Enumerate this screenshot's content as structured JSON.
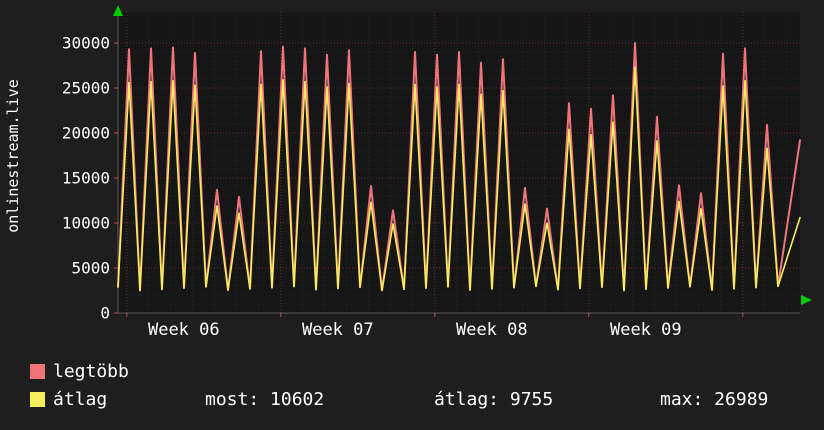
{
  "title_vertical": "onlinestream.live",
  "colors": {
    "bg": "#1e1e1e",
    "plot_bg": "#161616",
    "grid_major": "#e14b4b",
    "grid_minor": "#9a9a9a",
    "axis": "#8a8a8a",
    "arrow": "#00cc00",
    "text": "#ffffff",
    "max_line": "#ee747a",
    "avg_line": "#f2ee5e"
  },
  "legend": [
    {
      "label": "legtöbb",
      "color": "#ee747a"
    },
    {
      "label": "átlag",
      "color": "#f2ee5e"
    }
  ],
  "stats": {
    "most": "most: 10602",
    "atlag": "átlag: 9755",
    "max": "max: 26989"
  },
  "chart_data": {
    "type": "line",
    "title": "onlinestream.live",
    "xlabel": "",
    "ylabel": "",
    "ylim": [
      0,
      33000
    ],
    "y_ticks": [
      0,
      5000,
      10000,
      15000,
      20000,
      25000,
      30000
    ],
    "x_tick_labels": [
      "Week 06",
      "Week 07",
      "Week 08",
      "Week 09"
    ],
    "days_per_week": 7,
    "valley_base": 2500,
    "grid": true,
    "legend_position": "bottom-left",
    "series": [
      {
        "name": "legtöbb",
        "color": "#ee747a",
        "peaks": [
          29300,
          29400,
          29500,
          28900,
          13700,
          12900,
          29100,
          29600,
          29400,
          28700,
          29200,
          14100,
          11400,
          29000,
          28700,
          29000,
          27800,
          28200,
          13900,
          11600,
          23300,
          22700,
          24200,
          30000,
          21800,
          14200,
          13300,
          28800,
          29400,
          20900
        ],
        "current": 19200
      },
      {
        "name": "átlag",
        "color": "#f2ee5e",
        "peaks": [
          25600,
          25700,
          25800,
          25300,
          11900,
          11100,
          25400,
          25900,
          25700,
          25100,
          25500,
          12300,
          9900,
          25400,
          25100,
          25400,
          24300,
          24700,
          12100,
          10000,
          20400,
          19800,
          21200,
          27300,
          19100,
          12400,
          11600,
          25200,
          25800,
          18300
        ],
        "current": 10602
      }
    ]
  }
}
